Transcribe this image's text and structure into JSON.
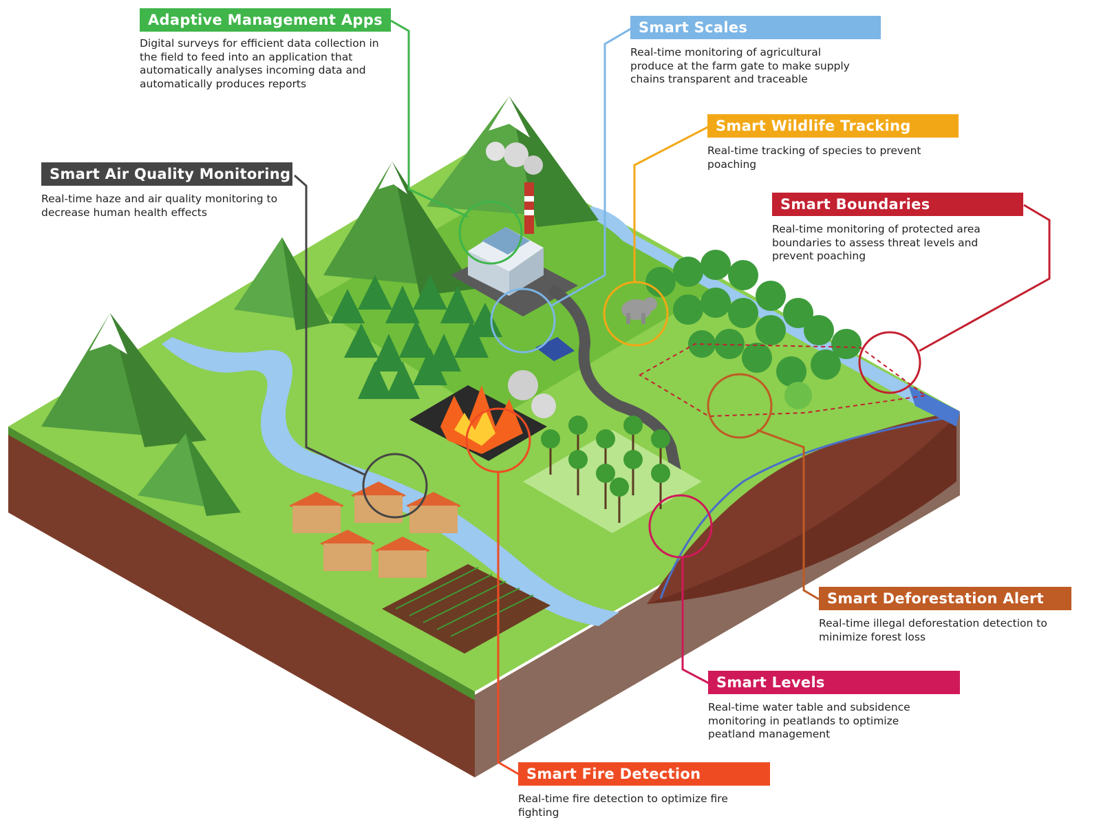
{
  "callouts": {
    "adaptive": {
      "title": "Adaptive Management Apps",
      "desc": "Digital surveys for efficient data collection in\nthe field to feed into an application that\nautomatically analyses incoming data and\nautomatically produces reports",
      "color": "#3fb54a"
    },
    "scales": {
      "title": "Smart Scales",
      "desc": "Real-time monitoring of agricultural\nproduce at the farm gate to make supply\nchains transparent and traceable",
      "color": "#7cb6e6"
    },
    "wildlife": {
      "title": "Smart Wildlife Tracking",
      "desc": "Real-time tracking of species to prevent\npoaching",
      "color": "#f2a816"
    },
    "air": {
      "title": "Smart Air Quality Monitoring",
      "desc": "Real-time haze and air quality monitoring to\ndecrease human health effects",
      "color": "#454545"
    },
    "boundaries": {
      "title": "Smart Boundaries",
      "desc": "Real-time monitoring of protected area\nboundaries to assess threat levels and\nprevent poaching",
      "color": "#c32030"
    },
    "deforestation": {
      "title": "Smart Deforestation Alert",
      "desc": "Real-time illegal deforestation detection to\nminimize forest loss",
      "color": "#bf5b25"
    },
    "levels": {
      "title": "Smart Levels",
      "desc": "Real-time water table and subsidence\nmonitoring in peatlands to optimize\npeatland management",
      "color": "#d01959"
    },
    "fire": {
      "title": "Smart Fire Detection",
      "desc": "Real-time fire detection to optimize fire\nfighting",
      "color": "#ef4b23"
    }
  },
  "icons": [
    "mountain-icon",
    "factory-icon",
    "tree-icon",
    "palm-tree-icon",
    "fire-icon",
    "house-icon",
    "elephant-icon",
    "truck-icon",
    "river-icon"
  ]
}
